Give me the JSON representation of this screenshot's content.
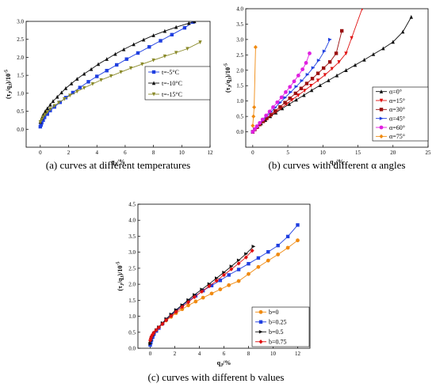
{
  "chart_data": [
    {
      "type": "line",
      "caption": "(a) curves at different temperatures",
      "xlabel": "q_J/%",
      "ylabel": "(τ_J/q_J)/10^-5",
      "xlim": [
        -1,
        12
      ],
      "ylim": [
        -0.5,
        3.0
      ],
      "xticks": [
        0,
        2,
        4,
        6,
        8,
        10,
        12
      ],
      "yticks": [
        0.0,
        0.5,
        1.0,
        1.5,
        2.0,
        2.5,
        3.0
      ],
      "ytick_labels": [
        "0.0",
        "0.5",
        "1.0",
        "1.5",
        "2.0",
        "2.5",
        "3.0"
      ],
      "grid": false,
      "legend_position": "middle-right",
      "series": [
        {
          "name": "t=-5°C",
          "color": "#1f3fe0",
          "marker": "square",
          "x": [
            0.0,
            0.05,
            0.1,
            0.2,
            0.3,
            0.5,
            0.7,
            1.0,
            1.4,
            1.8,
            2.3,
            2.8,
            3.4,
            4.0,
            4.7,
            5.4,
            6.1,
            6.9,
            7.7,
            8.5,
            9.3,
            10.2,
            10.8
          ],
          "y": [
            0.07,
            0.12,
            0.18,
            0.25,
            0.33,
            0.42,
            0.52,
            0.62,
            0.75,
            0.88,
            1.02,
            1.16,
            1.32,
            1.47,
            1.63,
            1.79,
            1.95,
            2.12,
            2.29,
            2.46,
            2.63,
            2.82,
            2.98
          ]
        },
        {
          "name": "t=-10°C",
          "color": "#111111",
          "marker": "triangle-up",
          "x": [
            0.0,
            0.1,
            0.2,
            0.35,
            0.5,
            0.7,
            0.9,
            1.2,
            1.5,
            1.8,
            2.2,
            2.6,
            3.1,
            3.6,
            4.1,
            4.7,
            5.3,
            5.9,
            6.6,
            7.3,
            8.0,
            8.8,
            9.6,
            10.5,
            10.9
          ],
          "y": [
            0.2,
            0.3,
            0.4,
            0.5,
            0.58,
            0.68,
            0.78,
            0.9,
            1.02,
            1.14,
            1.27,
            1.4,
            1.54,
            1.67,
            1.81,
            1.95,
            2.09,
            2.22,
            2.36,
            2.49,
            2.61,
            2.73,
            2.84,
            2.95,
            3.0
          ]
        },
        {
          "name": "t=-15°C",
          "color": "#8a8a2a",
          "marker": "triangle-down",
          "x": [
            0.0,
            0.1,
            0.2,
            0.35,
            0.5,
            0.7,
            1.0,
            1.3,
            1.7,
            2.1,
            2.6,
            3.1,
            3.7,
            4.3,
            5.0,
            5.7,
            6.4,
            7.2,
            8.0,
            8.8,
            9.6,
            10.4,
            11.3
          ],
          "y": [
            0.2,
            0.27,
            0.34,
            0.41,
            0.48,
            0.56,
            0.65,
            0.74,
            0.84,
            0.94,
            1.05,
            1.15,
            1.26,
            1.37,
            1.48,
            1.59,
            1.7,
            1.81,
            1.92,
            2.03,
            2.13,
            2.24,
            2.42
          ]
        }
      ]
    },
    {
      "type": "line",
      "caption": "(b) curves with different α angles",
      "xlabel": "q_J/%",
      "ylabel": "(τ_J/q_J)/10^-5",
      "xlim": [
        -1,
        25
      ],
      "ylim": [
        -0.5,
        4.0
      ],
      "xticks": [
        0,
        5,
        10,
        15,
        20,
        25
      ],
      "yticks": [
        0.0,
        0.5,
        1.0,
        1.5,
        2.0,
        2.5,
        3.0,
        3.5,
        4.0
      ],
      "ytick_labels": [
        "0.0",
        "0.5",
        "1.0",
        "1.5",
        "2.0",
        "2.5",
        "3.0",
        "3.5",
        "4.0"
      ],
      "grid": false,
      "legend_position": "bottom-right",
      "series": [
        {
          "name": "α=0°",
          "color": "#111111",
          "marker": "triangle-up",
          "x": [
            0.0,
            0.3,
            0.7,
            1.2,
            1.8,
            2.5,
            3.3,
            4.2,
            5.2,
            6.2,
            7.3,
            8.4,
            9.6,
            10.8,
            12.0,
            13.3,
            14.6,
            15.9,
            17.2,
            18.6,
            20.0,
            21.4,
            22.6
          ],
          "y": [
            0.0,
            0.08,
            0.17,
            0.27,
            0.38,
            0.5,
            0.62,
            0.76,
            0.9,
            1.04,
            1.19,
            1.35,
            1.51,
            1.67,
            1.83,
            2.0,
            2.17,
            2.34,
            2.52,
            2.71,
            2.92,
            3.25,
            3.73
          ]
        },
        {
          "name": "α=15°",
          "color": "#e01010",
          "marker": "triangle-down",
          "x": [
            0.0,
            0.3,
            0.6,
            1.0,
            1.5,
            2.0,
            2.6,
            3.3,
            4.0,
            4.8,
            5.6,
            6.5,
            7.4,
            8.3,
            9.3,
            10.3,
            11.3,
            12.3,
            13.3,
            14.1,
            15.6
          ],
          "y": [
            0.0,
            0.08,
            0.15,
            0.23,
            0.33,
            0.42,
            0.53,
            0.65,
            0.77,
            0.9,
            1.04,
            1.19,
            1.34,
            1.5,
            1.67,
            1.85,
            2.05,
            2.27,
            2.55,
            3.05,
            4.0
          ]
        },
        {
          "name": "α=30°",
          "color": "#9a1010",
          "marker": "square",
          "x": [
            0.0,
            0.3,
            0.6,
            1.0,
            1.5,
            2.0,
            2.6,
            3.2,
            3.9,
            4.6,
            5.3,
            6.1,
            6.9,
            7.7,
            8.5,
            9.3,
            10.1,
            11.0,
            11.9,
            12.7
          ],
          "y": [
            0.0,
            0.08,
            0.15,
            0.24,
            0.34,
            0.44,
            0.56,
            0.68,
            0.81,
            0.95,
            1.09,
            1.25,
            1.41,
            1.57,
            1.73,
            1.9,
            2.07,
            2.27,
            2.55,
            3.28
          ]
        },
        {
          "name": "α=45°",
          "color": "#1f3fe0",
          "marker": "triangle-right",
          "x": [
            0.0,
            0.3,
            0.6,
            1.0,
            1.5,
            2.0,
            2.6,
            3.2,
            3.9,
            4.6,
            5.4,
            6.2,
            7.0,
            7.8,
            8.6,
            9.4,
            10.2,
            11.0
          ],
          "y": [
            0.0,
            0.09,
            0.17,
            0.27,
            0.39,
            0.51,
            0.65,
            0.79,
            0.95,
            1.11,
            1.29,
            1.47,
            1.66,
            1.86,
            2.08,
            2.32,
            2.62,
            3.0
          ]
        },
        {
          "name": "α=60°",
          "color": "#e020e0",
          "marker": "circle",
          "x": [
            0.0,
            0.3,
            0.6,
            1.0,
            1.4,
            1.9,
            2.4,
            2.9,
            3.5,
            4.1,
            4.7,
            5.3,
            5.9,
            6.5,
            7.1,
            7.6,
            8.1
          ],
          "y": [
            0.0,
            0.09,
            0.18,
            0.29,
            0.4,
            0.53,
            0.66,
            0.8,
            0.96,
            1.12,
            1.29,
            1.46,
            1.64,
            1.83,
            2.03,
            2.24,
            2.55
          ]
        },
        {
          "name": "α=75°",
          "color": "#f08a10",
          "marker": "diamond",
          "x": [
            0.0,
            0.1,
            0.2,
            0.4
          ],
          "y": [
            0.2,
            0.5,
            0.8,
            2.75
          ]
        }
      ]
    },
    {
      "type": "line",
      "caption": "(c) curves with different b values",
      "xlabel": "q_J/%",
      "ylabel": "(τ_J/q_J)/10^-5",
      "xlim": [
        -1,
        13
      ],
      "ylim": [
        0.0,
        4.5
      ],
      "xticks": [
        0,
        2,
        4,
        6,
        8,
        10,
        12
      ],
      "yticks": [
        0.0,
        0.5,
        1.0,
        1.5,
        2.0,
        2.5,
        3.0,
        3.5,
        4.0,
        4.5
      ],
      "ytick_labels": [
        "0.0",
        "0.5",
        "1.0",
        "1.5",
        "2.0",
        "2.5",
        "3.0",
        "3.5",
        "4.0",
        "4.5"
      ],
      "grid": false,
      "legend_position": "bottom-right",
      "series": [
        {
          "name": "b=0",
          "color": "#f08a10",
          "marker": "circle",
          "x": [
            0.0,
            0.05,
            0.1,
            0.2,
            0.3,
            0.5,
            0.7,
            1.0,
            1.3,
            1.7,
            2.1,
            2.6,
            3.1,
            3.7,
            4.3,
            5.0,
            5.7,
            6.4,
            7.2,
            8.0,
            8.8,
            9.6,
            10.4,
            11.2,
            12.0
          ],
          "y": [
            0.17,
            0.25,
            0.32,
            0.4,
            0.47,
            0.56,
            0.64,
            0.76,
            0.87,
            0.98,
            1.1,
            1.22,
            1.34,
            1.46,
            1.58,
            1.71,
            1.84,
            1.97,
            2.1,
            2.32,
            2.54,
            2.74,
            2.93,
            3.14,
            3.37
          ]
        },
        {
          "name": "b=0.25",
          "color": "#1f3fe0",
          "marker": "square",
          "x": [
            0.0,
            0.05,
            0.1,
            0.2,
            0.3,
            0.5,
            0.7,
            1.0,
            1.3,
            1.7,
            2.1,
            2.6,
            3.1,
            3.7,
            4.3,
            5.0,
            5.7,
            6.4,
            7.2,
            8.0,
            8.8,
            9.6,
            10.4,
            11.2,
            12.0
          ],
          "y": [
            0.1,
            0.18,
            0.26,
            0.35,
            0.44,
            0.54,
            0.63,
            0.77,
            0.9,
            1.04,
            1.18,
            1.33,
            1.48,
            1.64,
            1.8,
            1.96,
            2.12,
            2.29,
            2.46,
            2.64,
            2.82,
            3.01,
            3.21,
            3.49,
            3.85
          ]
        },
        {
          "name": "b=0.5",
          "color": "#111111",
          "marker": "triangle-right",
          "x": [
            0.0,
            0.05,
            0.1,
            0.2,
            0.3,
            0.5,
            0.7,
            1.0,
            1.3,
            1.7,
            2.1,
            2.6,
            3.1,
            3.6,
            4.2,
            4.8,
            5.4,
            6.0,
            6.6,
            7.2,
            7.8,
            8.4
          ],
          "y": [
            0.14,
            0.23,
            0.31,
            0.39,
            0.47,
            0.57,
            0.66,
            0.79,
            0.92,
            1.06,
            1.2,
            1.35,
            1.51,
            1.67,
            1.84,
            2.01,
            2.19,
            2.37,
            2.56,
            2.75,
            2.95,
            3.18
          ]
        },
        {
          "name": "b=0.75",
          "color": "#e01010",
          "marker": "diamond",
          "x": [
            0.0,
            0.05,
            0.1,
            0.2,
            0.3,
            0.5,
            0.7,
            1.0,
            1.3,
            1.7,
            2.1,
            2.6,
            3.1,
            3.6,
            4.2,
            4.8,
            5.4,
            6.0,
            6.6,
            7.2,
            7.8,
            8.3
          ],
          "y": [
            0.25,
            0.31,
            0.37,
            0.43,
            0.49,
            0.57,
            0.65,
            0.76,
            0.88,
            1.01,
            1.14,
            1.29,
            1.44,
            1.6,
            1.77,
            1.94,
            2.11,
            2.29,
            2.47,
            2.65,
            2.84,
            3.05
          ]
        }
      ]
    }
  ]
}
